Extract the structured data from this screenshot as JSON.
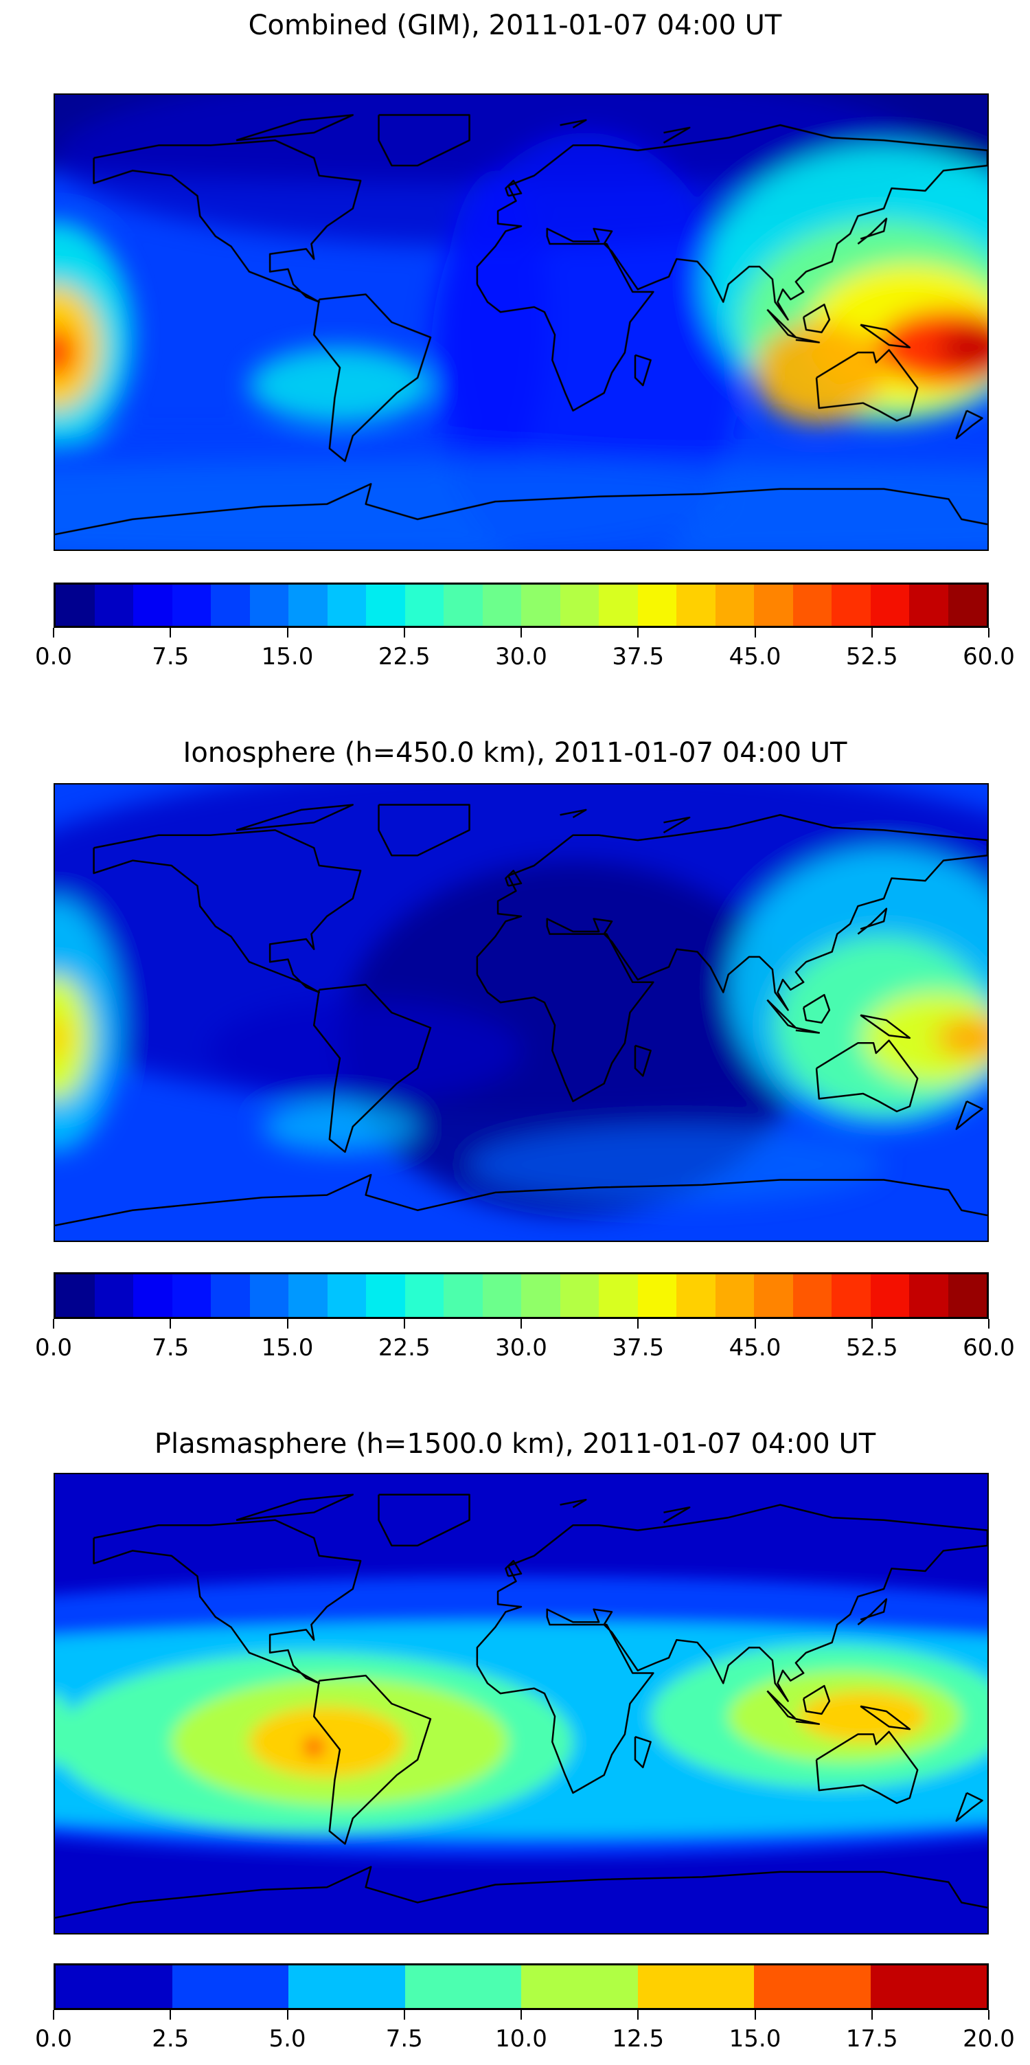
{
  "chart_data": [
    {
      "type": "heatmap",
      "title": "Combined (GIM), 2011-01-07 04:00 UT",
      "xlabel": "",
      "ylabel": "",
      "colorbar": {
        "range": [
          0,
          60
        ],
        "levels_step": 2.5,
        "tick_labels": [
          "0.0",
          "7.5",
          "15.0",
          "22.5",
          "30.0",
          "37.5",
          "45.0",
          "52.5",
          "60.0"
        ],
        "colors": [
          "#00008f",
          "#0000c4",
          "#0000f6",
          "#0010ff",
          "#0040ff",
          "#006cff",
          "#0098ff",
          "#00c4ff",
          "#00ecf0",
          "#28ffd0",
          "#4cffac",
          "#6cff8c",
          "#90ff68",
          "#b4ff44",
          "#d8ff20",
          "#f8f800",
          "#ffd000",
          "#ffac00",
          "#ff8400",
          "#ff5800",
          "#ff3000",
          "#f41000",
          "#c40000",
          "#980000"
        ]
      },
      "features": {
        "max_region": "western Pacific / New Guinea (~55)",
        "min_region": "northern high latitudes / Atlantic (~2.5)"
      }
    },
    {
      "type": "heatmap",
      "title": "Ionosphere  (h=450.0 km), 2011-01-07 04:00 UT",
      "xlabel": "",
      "ylabel": "",
      "colorbar": {
        "range": [
          0,
          60
        ],
        "levels_step": 2.5,
        "tick_labels": [
          "0.0",
          "7.5",
          "15.0",
          "22.5",
          "30.0",
          "37.5",
          "45.0",
          "52.5",
          "60.0"
        ],
        "colors": [
          "#00008f",
          "#0000c4",
          "#0000f6",
          "#0010ff",
          "#0040ff",
          "#006cff",
          "#0098ff",
          "#00c4ff",
          "#00ecf0",
          "#28ffd0",
          "#4cffac",
          "#6cff8c",
          "#90ff68",
          "#b4ff44",
          "#d8ff20",
          "#f8f800",
          "#ffd000",
          "#ffac00",
          "#ff8400",
          "#ff5800",
          "#ff3000",
          "#f41000",
          "#c40000",
          "#980000"
        ]
      },
      "features": {
        "max_region": "western Pacific (~42)",
        "min_region": "Atlantic / Africa (~2.5)"
      }
    },
    {
      "type": "heatmap",
      "title": "Plasmasphere (h=1500.0 km), 2011-01-07 04:00 UT",
      "xlabel": "",
      "ylabel": "",
      "colorbar": {
        "range": [
          0,
          20
        ],
        "levels_step": 2.5,
        "tick_labels": [
          "0.0",
          "2.5",
          "5.0",
          "7.5",
          "10.0",
          "12.5",
          "15.0",
          "17.5",
          "20.0"
        ],
        "colors": [
          "#0000c8",
          "#0040ff",
          "#00c0ff",
          "#4cffb0",
          "#b0ff44",
          "#ffd000",
          "#ff5800",
          "#c40000"
        ]
      },
      "features": {
        "max_region": "eastern Pacific (~16)",
        "min_region": "high latitudes (~1)"
      }
    }
  ]
}
